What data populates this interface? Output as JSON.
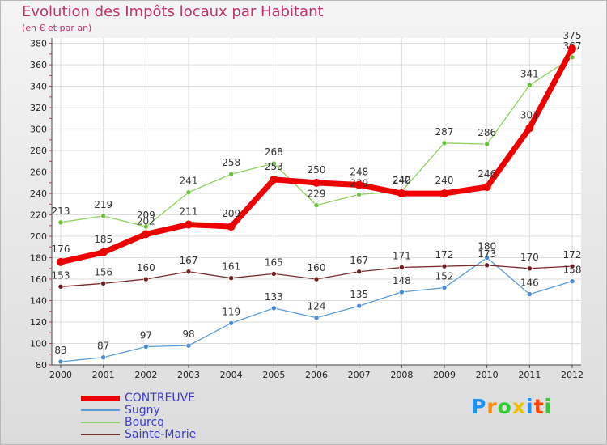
{
  "title": "Evolution des Impôts locaux par Habitant",
  "subtitle": "(en € et par an)",
  "logo": {
    "text": "Proxiti",
    "colors": [
      "#1e90ff",
      "#ff8c00",
      "#32cd32",
      "#e8c400",
      "#1e90ff",
      "#ff4500",
      "#32cd32"
    ]
  },
  "chart_data": {
    "type": "line",
    "title": "Evolution des Impôts locaux par Habitant",
    "subtitle": "(en € et par an)",
    "x": [
      "2000",
      "2001",
      "2002",
      "2003",
      "2004",
      "2005",
      "2006",
      "2007",
      "2008",
      "2009",
      "2010",
      "2011",
      "2012"
    ],
    "ylim": [
      80,
      385
    ],
    "yticks": [
      80,
      100,
      120,
      140,
      160,
      180,
      200,
      220,
      240,
      260,
      280,
      300,
      320,
      340,
      360,
      380
    ],
    "ytick_labels": [
      "80",
      "100",
      "120",
      "140",
      "160",
      "180",
      "200",
      "220",
      "240",
      "260",
      "280",
      "300",
      "320",
      "340",
      "360",
      "380"
    ],
    "grid": true,
    "legend_position": "bottom-left",
    "series": [
      {
        "name": "Sugny",
        "color": "#5b9bd5",
        "width": 1.3,
        "marker": "#4a8ad4",
        "label_dy": [
          -10,
          -10,
          -10,
          -10,
          -10,
          -10,
          -10,
          -10,
          -10,
          -10,
          -10,
          -10,
          -10
        ],
        "values": [
          83,
          87,
          97,
          98,
          119,
          133,
          124,
          135,
          148,
          152,
          180,
          146,
          158
        ]
      },
      {
        "name": "Sainte-Marie",
        "color": "#7a2a2a",
        "width": 1.3,
        "marker": "#6e1e1e",
        "label_dy": [
          -10,
          -10,
          -10,
          -10,
          -10,
          -10,
          -10,
          -10,
          -10,
          -10,
          -10,
          -10,
          -10
        ],
        "values": [
          153,
          156,
          160,
          167,
          161,
          165,
          160,
          167,
          171,
          172,
          173,
          170,
          172
        ]
      },
      {
        "name": "Bourcq",
        "color": "#8fd160",
        "width": 1.3,
        "marker": "#6cc23a",
        "label_dy": [
          -10,
          -10,
          -10,
          -10,
          -10,
          -10,
          -10,
          -10,
          -10,
          -10,
          -10,
          -10,
          -10
        ],
        "values": [
          213,
          219,
          209,
          241,
          258,
          268,
          229,
          239,
          242,
          287,
          286,
          341,
          367
        ]
      },
      {
        "name": "CONTREUVE",
        "color": "#ee0000",
        "width": 7,
        "marker": "#ee0000",
        "label_dy": [
          -12,
          -12,
          -12,
          -12,
          -12,
          -12,
          -12,
          -12,
          -12,
          -12,
          -12,
          -12,
          -12
        ],
        "values": [
          176,
          185,
          202,
          211,
          209,
          253,
          250,
          248,
          240,
          240,
          246,
          301,
          375
        ]
      }
    ],
    "legend_order": [
      "CONTREUVE",
      "Sugny",
      "Bourcq",
      "Sainte-Marie"
    ]
  }
}
